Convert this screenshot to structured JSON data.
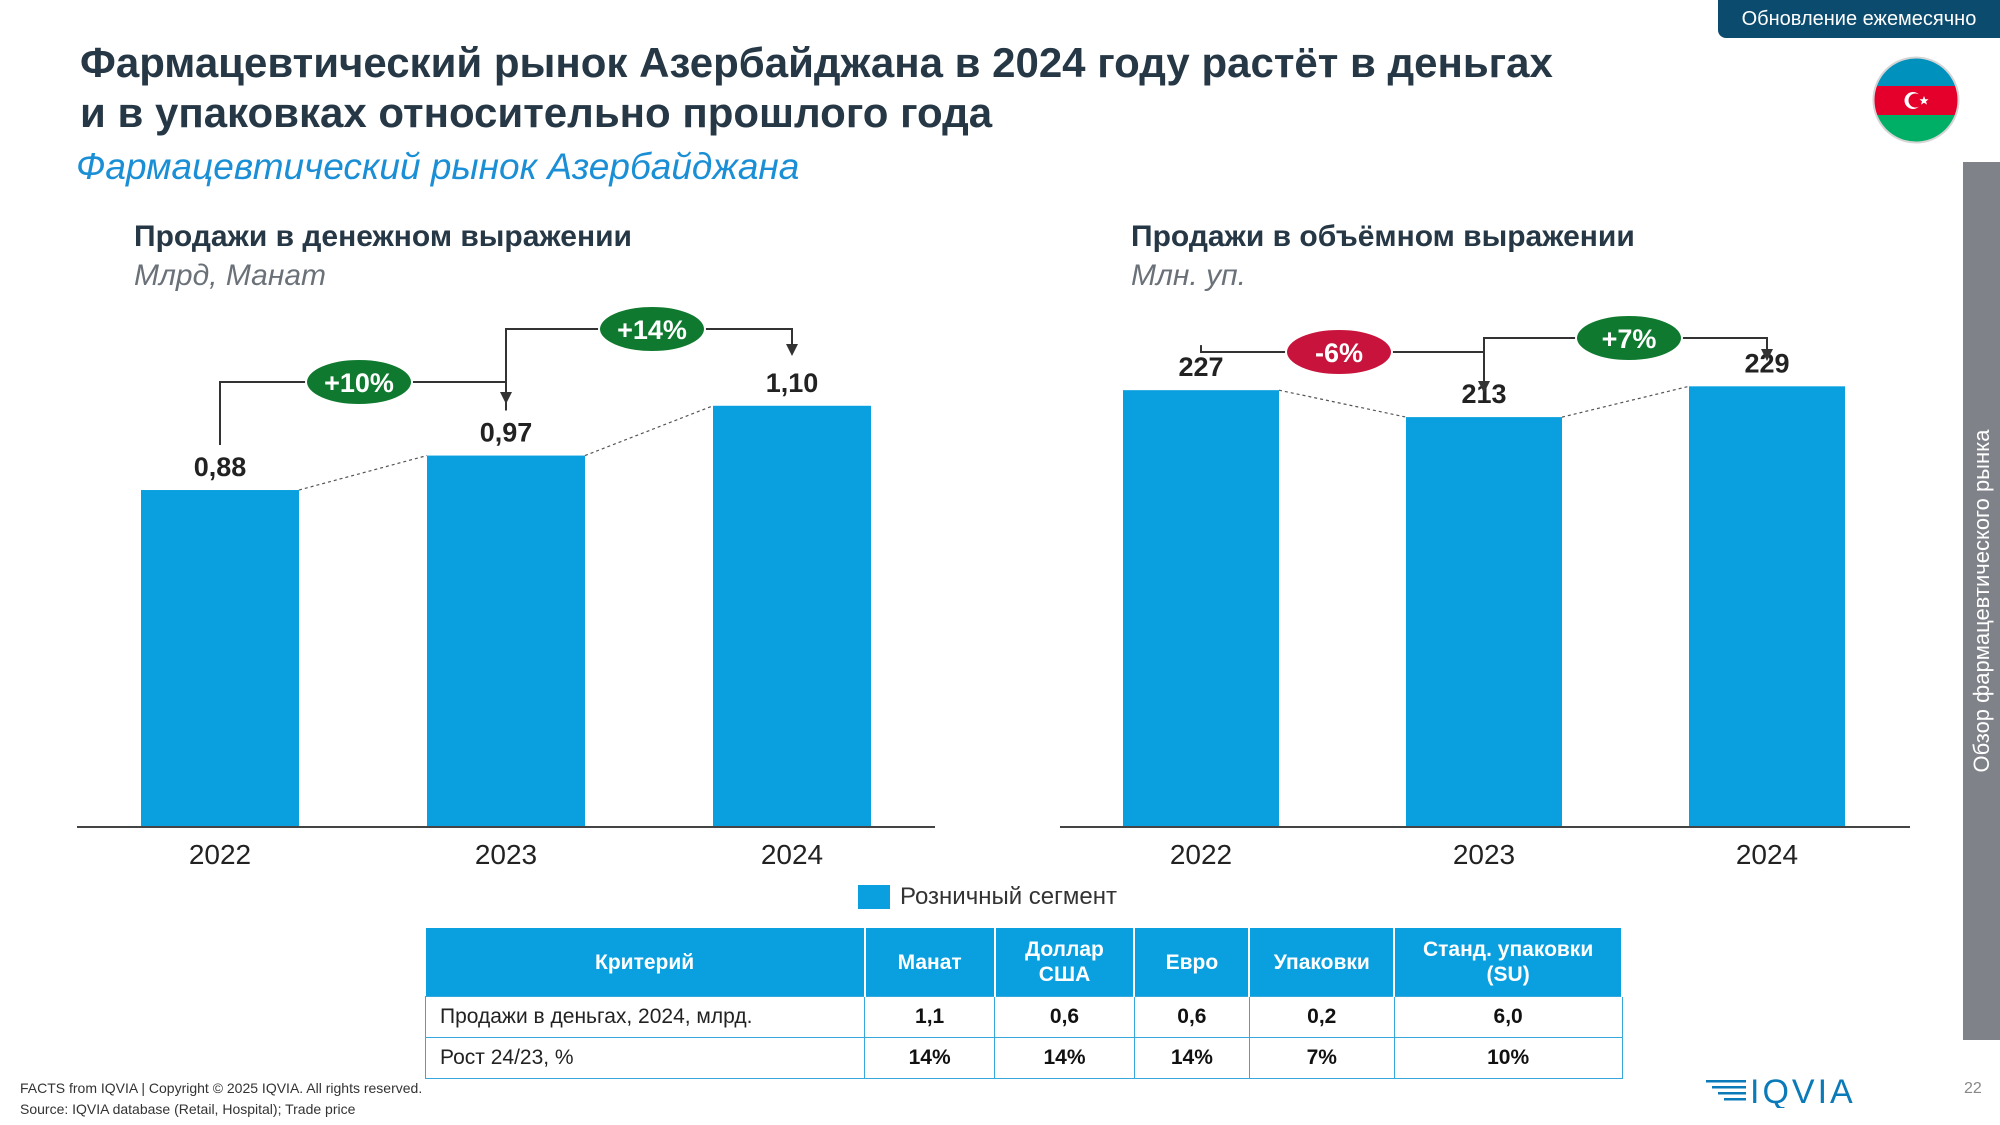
{
  "badge": "Обновление ежемесячно",
  "title_line1": "Фармацевтический рынок Азербайджана в 2024 году растёт в деньгах",
  "title_line2": "и в упаковках относительно прошлого года",
  "subtitle": "Фармацевтический рынок Азербайджана",
  "side_tab": "Обзор фармацевтического рынка",
  "chart_data": [
    {
      "type": "bar",
      "title": "Продажи в денежном выражении",
      "unit": "Млрд, Манат",
      "categories": [
        "2022",
        "2023",
        "2024"
      ],
      "values": [
        0.88,
        0.97,
        1.1
      ],
      "labels": [
        "0,88",
        "0,97",
        "1,10"
      ],
      "growth": [
        {
          "from": "2022",
          "to": "2023",
          "label": "+10%",
          "color": "#0f7a2f"
        },
        {
          "from": "2023",
          "to": "2024",
          "label": "+14%",
          "color": "#0f7a2f"
        }
      ],
      "ylim": [
        0,
        1.23
      ]
    },
    {
      "type": "bar",
      "title": "Продажи в объёмном выражении",
      "unit": "Млн. уп.",
      "categories": [
        "2022",
        "2023",
        "2024"
      ],
      "values": [
        227,
        213,
        229
      ],
      "labels": [
        "227",
        "213",
        "229"
      ],
      "growth": [
        {
          "from": "2022",
          "to": "2023",
          "label": "-6%",
          "color": "#c8143c"
        },
        {
          "from": "2023",
          "to": "2024",
          "label": "+7%",
          "color": "#0f7a2f"
        }
      ],
      "ylim": [
        0,
        238
      ]
    }
  ],
  "bar_color": "#0aa0e0",
  "legend": "Розничный сегмент",
  "table": {
    "headers": [
      "Критерий",
      "Манат",
      "Доллар США",
      "Евро",
      "Упаковки",
      "Станд. упаковки (SU)"
    ],
    "rows": [
      [
        "Продажи в деньгах,  2024, млрд.",
        "1,1",
        "0,6",
        "0,6",
        "0,2",
        "6,0"
      ],
      [
        "Рост 24/23, %",
        "14%",
        "14%",
        "14%",
        "7%",
        "10%"
      ]
    ]
  },
  "footer_line1": "FACTS from IQVIA | Copyright © 2025 IQVIA. All rights reserved.",
  "footer_line2": "Source: IQVIA database (Retail, Hospital); Trade price",
  "logo_text": "IQVIA",
  "page_number": "22"
}
